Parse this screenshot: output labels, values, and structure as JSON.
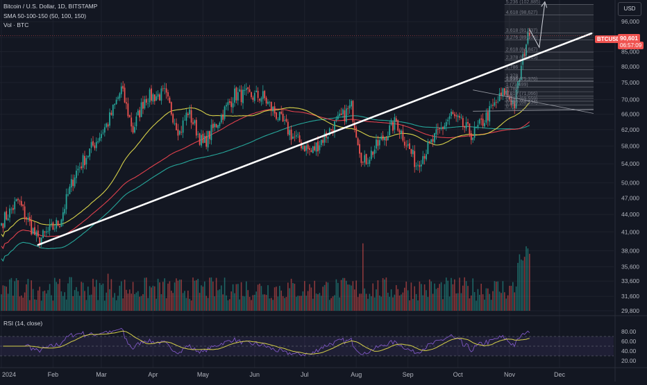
{
  "header": {
    "symbol_line": "Bitcoin / U.S. Dollar, 1D, BITSTAMP",
    "sma_line": "SMA 50-100-150 (50, 100, 150)",
    "vol_line": "Vol · BTC",
    "currency": "USD"
  },
  "price_tag": {
    "symbol": "BTCUSD",
    "price": "90,601",
    "countdown": "06:57:09"
  },
  "rsi_label": "RSI (14, close)",
  "colors": {
    "background": "#131722",
    "up": "#26a69a",
    "down": "#ef5350",
    "sma50": "#d7d14a",
    "sma100": "#e0414d",
    "sma150": "#26a69a",
    "rsi": "#7e57c2",
    "rsi_ma": "#d7d14a",
    "trendline": "#ffffff",
    "price_tag": "#ef5350"
  },
  "chart_data": {
    "type": "candlestick",
    "x_ticks": [
      "2024",
      "Feb",
      "Mar",
      "Apr",
      "May",
      "Jun",
      "Jul",
      "Aug",
      "Sep",
      "Oct",
      "Nov",
      "Dec"
    ],
    "y_ticks": [
      "96,000",
      "90,000",
      "85,000",
      "80,000",
      "75,000",
      "70,000",
      "66,000",
      "62,000",
      "58,000",
      "54,000",
      "50,000",
      "47,000",
      "44,000",
      "41,000",
      "38,000",
      "35,600",
      "33,600",
      "31,600",
      "29,800"
    ],
    "rsi_ticks": [
      "80.00",
      "60.00",
      "40.00",
      "20.00"
    ],
    "y_scale": "log",
    "ylim": [
      29800,
      103000
    ],
    "price_key_points": [
      {
        "date": "2024-01-01",
        "close": 42500
      },
      {
        "date": "2024-01-11",
        "close": 46500
      },
      {
        "date": "2024-01-23",
        "close": 39500
      },
      {
        "date": "2024-02-05",
        "close": 42700
      },
      {
        "date": "2024-02-14",
        "close": 51800
      },
      {
        "date": "2024-03-05",
        "close": 63800
      },
      {
        "date": "2024-03-13",
        "close": 73000
      },
      {
        "date": "2024-03-20",
        "close": 61900
      },
      {
        "date": "2024-03-27",
        "close": 70500
      },
      {
        "date": "2024-04-08",
        "close": 71600
      },
      {
        "date": "2024-04-17",
        "close": 61300
      },
      {
        "date": "2024-04-22",
        "close": 66800
      },
      {
        "date": "2024-05-01",
        "close": 58300
      },
      {
        "date": "2024-05-20",
        "close": 71400
      },
      {
        "date": "2024-06-06",
        "close": 70800
      },
      {
        "date": "2024-06-24",
        "close": 60300
      },
      {
        "date": "2024-07-05",
        "close": 56600
      },
      {
        "date": "2024-07-14",
        "close": 60800
      },
      {
        "date": "2024-07-29",
        "close": 68000
      },
      {
        "date": "2024-08-05",
        "close": 54000
      },
      {
        "date": "2024-08-25",
        "close": 64100
      },
      {
        "date": "2024-09-06",
        "close": 53900
      },
      {
        "date": "2024-09-27",
        "close": 65800
      },
      {
        "date": "2024-10-10",
        "close": 60600
      },
      {
        "date": "2024-10-29",
        "close": 72300
      },
      {
        "date": "2024-11-04",
        "close": 68700
      },
      {
        "date": "2024-11-11",
        "close": 88500
      },
      {
        "date": "2024-11-13",
        "close": 90601
      }
    ],
    "fib_levels": [
      {
        "label": "5.236 (102,885)",
        "value": 102885
      },
      {
        "label": "4.618 (98,627)",
        "value": 98627
      },
      {
        "label": "3.618 (91,737)",
        "value": 91737
      },
      {
        "label": "3.276 (89,105)",
        "value": 89105
      },
      {
        "label": "2.618 (84,847)",
        "value": 84847
      },
      {
        "label": "2.378 (82,215)",
        "value": 82215
      },
      {
        "label": "1.786",
        "value": 79000
      },
      {
        "label": "1.378",
        "value": 76300
      },
      {
        "label": "1.618",
        "value": 75500
      },
      {
        "label": "1.236 (75,376)",
        "value": 75376
      },
      {
        "label": "1 (73,699)",
        "value": 73699
      },
      {
        "label": "0.786",
        "value": 72300
      },
      {
        "label": "0.618 (71,066)",
        "value": 71066
      },
      {
        "label": "0.5",
        "value": 70400
      },
      {
        "label": "0.382 (69,559)",
        "value": 69559
      },
      {
        "label": "0.236 (68,534)",
        "value": 68534
      },
      {
        "label": "0",
        "value": 67400
      }
    ],
    "trendline": [
      {
        "date": "2024-01-23",
        "value": 38900
      },
      {
        "date": "2024-11-20",
        "value": 91500
      }
    ],
    "current_price": 90601
  }
}
